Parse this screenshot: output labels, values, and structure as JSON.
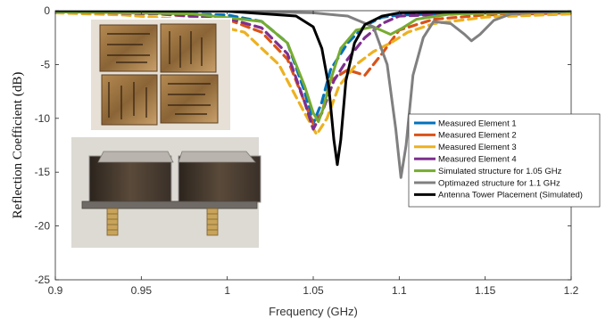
{
  "chart_data": {
    "type": "line",
    "title": "",
    "xlabel": "Frequency (GHz)",
    "ylabel": "Reflection Coefficient (dB)",
    "xlim": [
      0.9,
      1.2
    ],
    "ylim": [
      -25,
      0
    ],
    "xticks": [
      "0.9",
      "0.95",
      "1",
      "1.05",
      "1.1",
      "1.15",
      "1.2"
    ],
    "yticks": [
      "0",
      "-5",
      "-10",
      "-15",
      "-20",
      "-25"
    ],
    "grid": false,
    "legend_position": "right",
    "series": [
      {
        "name": "Measured Element 1",
        "color": "#0072BD",
        "style": "dashed",
        "points": [
          [
            0.9,
            -0.1
          ],
          [
            0.96,
            -0.2
          ],
          [
            1.0,
            -0.4
          ],
          [
            1.02,
            -1.0
          ],
          [
            1.035,
            -3.0
          ],
          [
            1.045,
            -7.5
          ],
          [
            1.05,
            -10.5
          ],
          [
            1.055,
            -8.5
          ],
          [
            1.06,
            -5.5
          ],
          [
            1.07,
            -3.0
          ],
          [
            1.08,
            -1.4
          ],
          [
            1.09,
            -0.6
          ],
          [
            1.1,
            -0.4
          ],
          [
            1.15,
            -0.2
          ],
          [
            1.2,
            -0.1
          ]
        ]
      },
      {
        "name": "Measured Element 2",
        "color": "#D95319",
        "style": "dashed",
        "points": [
          [
            0.9,
            -0.2
          ],
          [
            0.96,
            -0.3
          ],
          [
            1.0,
            -0.8
          ],
          [
            1.02,
            -2.0
          ],
          [
            1.035,
            -4.5
          ],
          [
            1.045,
            -8.5
          ],
          [
            1.05,
            -10.5
          ],
          [
            1.055,
            -9.5
          ],
          [
            1.06,
            -6.5
          ],
          [
            1.07,
            -5.5
          ],
          [
            1.08,
            -6.0
          ],
          [
            1.09,
            -4.0
          ],
          [
            1.1,
            -1.8
          ],
          [
            1.12,
            -0.8
          ],
          [
            1.15,
            -0.4
          ],
          [
            1.2,
            -0.2
          ]
        ]
      },
      {
        "name": "Measured Element 3",
        "color": "#EDB120",
        "style": "dashed",
        "points": [
          [
            0.9,
            -0.2
          ],
          [
            0.94,
            -0.4
          ],
          [
            0.98,
            -0.9
          ],
          [
            1.01,
            -2.0
          ],
          [
            1.03,
            -5.0
          ],
          [
            1.045,
            -9.5
          ],
          [
            1.052,
            -11.5
          ],
          [
            1.058,
            -10.0
          ],
          [
            1.065,
            -7.0
          ],
          [
            1.075,
            -5.0
          ],
          [
            1.085,
            -3.8
          ],
          [
            1.095,
            -3.0
          ],
          [
            1.105,
            -2.0
          ],
          [
            1.12,
            -1.2
          ],
          [
            1.15,
            -0.6
          ],
          [
            1.2,
            -0.3
          ]
        ]
      },
      {
        "name": "Measured Element 4",
        "color": "#7E2F8E",
        "style": "dashed",
        "points": [
          [
            0.9,
            -0.1
          ],
          [
            0.96,
            -0.3
          ],
          [
            1.0,
            -0.7
          ],
          [
            1.02,
            -1.6
          ],
          [
            1.035,
            -4.0
          ],
          [
            1.045,
            -8.5
          ],
          [
            1.05,
            -11.0
          ],
          [
            1.055,
            -9.5
          ],
          [
            1.062,
            -6.5
          ],
          [
            1.07,
            -4.5
          ],
          [
            1.08,
            -2.5
          ],
          [
            1.09,
            -1.2
          ],
          [
            1.1,
            -0.5
          ],
          [
            1.15,
            -0.2
          ],
          [
            1.2,
            -0.1
          ]
        ]
      },
      {
        "name": "Simulated structure for 1.05 GHz",
        "color": "#77AC30",
        "style": "solid",
        "points": [
          [
            0.9,
            -0.1
          ],
          [
            0.98,
            -0.3
          ],
          [
            1.02,
            -1.0
          ],
          [
            1.035,
            -3.0
          ],
          [
            1.045,
            -7.0
          ],
          [
            1.05,
            -9.5
          ],
          [
            1.053,
            -10.3
          ],
          [
            1.056,
            -9.0
          ],
          [
            1.06,
            -6.5
          ],
          [
            1.066,
            -3.5
          ],
          [
            1.075,
            -1.8
          ],
          [
            1.085,
            -1.5
          ],
          [
            1.095,
            -2.2
          ],
          [
            1.102,
            -1.6
          ],
          [
            1.11,
            -0.8
          ],
          [
            1.13,
            -0.3
          ],
          [
            1.2,
            -0.1
          ]
        ]
      },
      {
        "name": "Optimazed structure for 1.1 GHz",
        "color": "#808080",
        "style": "solid",
        "points": [
          [
            0.9,
            0
          ],
          [
            1.0,
            -0.05
          ],
          [
            1.05,
            -0.2
          ],
          [
            1.07,
            -0.5
          ],
          [
            1.085,
            -1.5
          ],
          [
            1.093,
            -5.0
          ],
          [
            1.098,
            -11.0
          ],
          [
            1.101,
            -15.5
          ],
          [
            1.104,
            -12.5
          ],
          [
            1.108,
            -6.0
          ],
          [
            1.114,
            -2.5
          ],
          [
            1.12,
            -1.0
          ],
          [
            1.13,
            -1.2
          ],
          [
            1.138,
            -2.2
          ],
          [
            1.142,
            -2.8
          ],
          [
            1.147,
            -2.2
          ],
          [
            1.155,
            -0.9
          ],
          [
            1.165,
            -0.3
          ],
          [
            1.2,
            0
          ]
        ]
      },
      {
        "name": "Antenna Tower Placement (Simulated)",
        "color": "#000000",
        "style": "solid",
        "points": [
          [
            0.9,
            0
          ],
          [
            1.0,
            -0.05
          ],
          [
            1.04,
            -0.5
          ],
          [
            1.05,
            -1.5
          ],
          [
            1.055,
            -3.5
          ],
          [
            1.059,
            -7.0
          ],
          [
            1.062,
            -12.0
          ],
          [
            1.064,
            -14.3
          ],
          [
            1.066,
            -12.0
          ],
          [
            1.069,
            -6.5
          ],
          [
            1.074,
            -3.0
          ],
          [
            1.08,
            -1.3
          ],
          [
            1.09,
            -0.5
          ],
          [
            1.1,
            -0.2
          ],
          [
            1.2,
            0
          ]
        ]
      }
    ]
  }
}
